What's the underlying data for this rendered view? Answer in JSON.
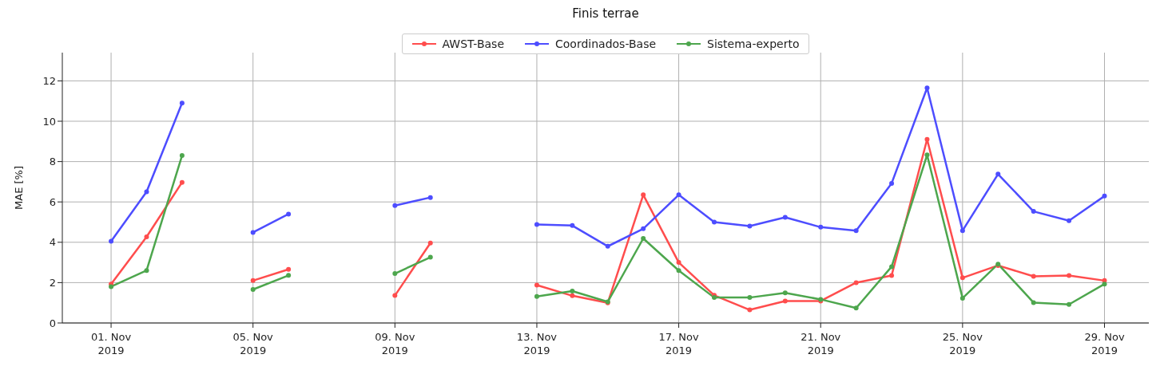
{
  "chart_data": {
    "type": "line",
    "title": "Finis terrae",
    "ylabel": "MAE [%]",
    "x": [
      "2019-11-01",
      "2019-11-02",
      "2019-11-03",
      "2019-11-04",
      "2019-11-05",
      "2019-11-06",
      "2019-11-07",
      "2019-11-08",
      "2019-11-09",
      "2019-11-10",
      "2019-11-11",
      "2019-11-12",
      "2019-11-13",
      "2019-11-14",
      "2019-11-15",
      "2019-11-16",
      "2019-11-17",
      "2019-11-18",
      "2019-11-19",
      "2019-11-20",
      "2019-11-21",
      "2019-11-22",
      "2019-11-23",
      "2019-11-24",
      "2019-11-25",
      "2019-11-26",
      "2019-11-27",
      "2019-11-28",
      "2019-11-29"
    ],
    "series": [
      {
        "name": "AWST-Base",
        "color": "#ff4d4d",
        "values": [
          1.93,
          4.27,
          6.97,
          null,
          2.1,
          2.66,
          null,
          null,
          1.36,
          3.96,
          null,
          null,
          1.88,
          1.35,
          1.0,
          6.35,
          3.0,
          1.37,
          0.65,
          1.09,
          1.09,
          2.0,
          2.35,
          9.1,
          2.24,
          2.85,
          2.31,
          2.35,
          2.1
        ]
      },
      {
        "name": "Coordinados-Base",
        "color": "#4d4dff",
        "values": [
          4.05,
          6.5,
          10.9,
          null,
          4.49,
          5.4,
          null,
          null,
          5.82,
          6.22,
          null,
          null,
          4.88,
          4.83,
          3.8,
          4.67,
          6.35,
          5.0,
          4.8,
          5.24,
          4.75,
          4.58,
          6.92,
          11.65,
          4.58,
          7.38,
          5.53,
          5.07,
          6.29
        ]
      },
      {
        "name": "Sistema-experto",
        "color": "#4da64d",
        "values": [
          1.8,
          2.6,
          8.3,
          null,
          1.66,
          2.36,
          null,
          null,
          2.45,
          3.26,
          null,
          null,
          1.31,
          1.58,
          1.05,
          4.19,
          2.6,
          1.26,
          1.26,
          1.49,
          1.17,
          0.74,
          2.79,
          8.33,
          1.23,
          2.92,
          1.01,
          0.92,
          1.93
        ]
      }
    ],
    "xlim": [
      "2019-10-30T15:00",
      "2019-11-30T06:00"
    ],
    "xticks": [
      {
        "value": "2019-11-01",
        "label": "01. Nov\n2019"
      },
      {
        "value": "2019-11-05",
        "label": "05. Nov\n2019"
      },
      {
        "value": "2019-11-09",
        "label": "09. Nov\n2019"
      },
      {
        "value": "2019-11-13",
        "label": "13. Nov\n2019"
      },
      {
        "value": "2019-11-17",
        "label": "17. Nov\n2019"
      },
      {
        "value": "2019-11-21",
        "label": "21. Nov\n2019"
      },
      {
        "value": "2019-11-25",
        "label": "25. Nov\n2019"
      },
      {
        "value": "2019-11-29",
        "label": "29. Nov\n2019"
      }
    ],
    "ylim": [
      0,
      13.4
    ],
    "yticks": [
      0,
      2,
      4,
      6,
      8,
      10,
      12
    ],
    "grid": true,
    "legend": "top",
    "marker": "circle",
    "line_style": "solid"
  }
}
